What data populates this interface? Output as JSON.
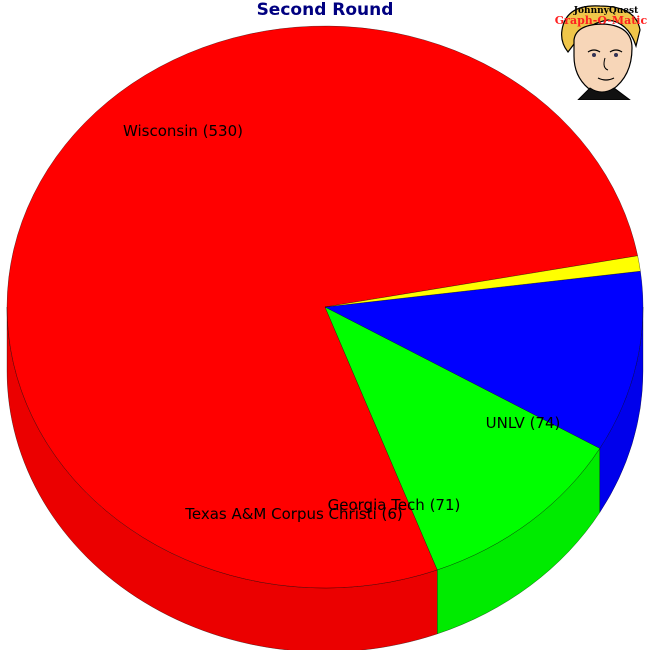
{
  "chart_data": {
    "type": "pie",
    "title": "Second Round",
    "series": [
      {
        "name": "Wisconsin",
        "value": 530,
        "label": "Wisconsin (530)",
        "color": "#ff0000"
      },
      {
        "name": "UNLV",
        "value": 74,
        "label": "UNLV (74)",
        "color": "#00ff00"
      },
      {
        "name": "Georgia Tech",
        "value": 71,
        "label": "Georgia Tech (71)",
        "color": "#0000ff"
      },
      {
        "name": "Texas A&M Corpus Christi",
        "value": 6,
        "label": "Texas A&M Corpus Christi (6)",
        "color": "#ffff00"
      }
    ],
    "style": "3d-tilted"
  },
  "logo": {
    "brand": "JohnnyQuest",
    "product": "Graph-O-Matic"
  }
}
